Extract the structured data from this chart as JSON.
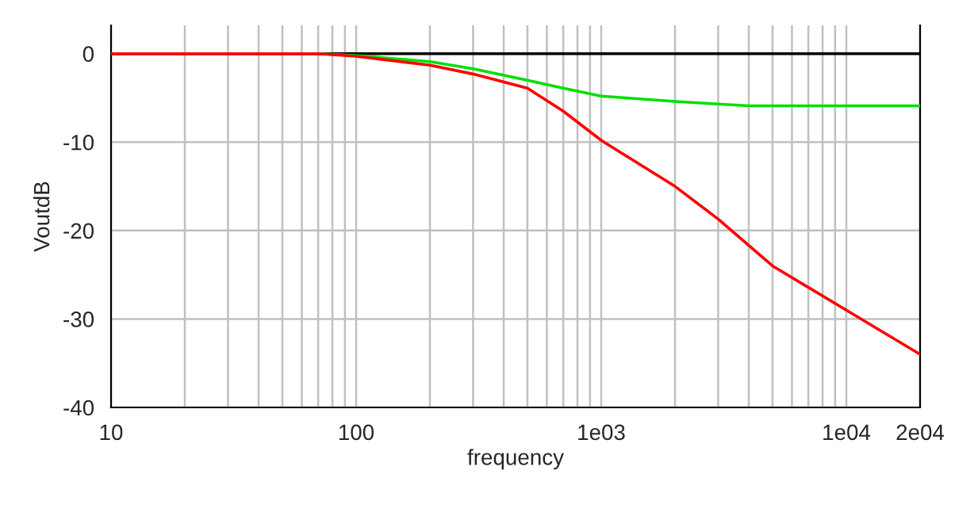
{
  "chart_data": {
    "type": "line",
    "xlabel": "frequency",
    "ylabel": "VoutdB",
    "log": "x",
    "xlim": [
      10,
      20000
    ],
    "xticks": [
      10,
      100,
      {
        "value": 1000,
        "label": "1e03"
      },
      {
        "value": 10000,
        "label": "1e04"
      },
      {
        "value": 20000,
        "label": "2e04"
      }
    ],
    "ylim": [
      -40,
      3.2
    ],
    "yticks": [
      -40,
      -30,
      -20,
      -10,
      0
    ],
    "grid": true,
    "series": [
      {
        "color": "#000000",
        "x": [
          10,
          20000
        ],
        "values": [
          0,
          0
        ]
      },
      {
        "color": "#00e000",
        "x": [
          70,
          100,
          200,
          300,
          500,
          700,
          1000,
          2000,
          4000,
          10000,
          20000
        ],
        "values": [
          0,
          -0.2,
          -0.9,
          -1.7,
          -3.0,
          -3.9,
          -4.8,
          -5.4,
          -5.9,
          -5.9,
          -5.9
        ]
      },
      {
        "color": "#ff0000",
        "x": [
          10,
          70,
          100,
          200,
          300,
          500,
          700,
          1000,
          2000,
          3000,
          5000,
          10000,
          20000
        ],
        "values": [
          0,
          0,
          -0.3,
          -1.3,
          -2.3,
          -3.9,
          -6.5,
          -9.8,
          -15,
          -18.7,
          -24,
          -29,
          -34
        ]
      }
    ]
  }
}
